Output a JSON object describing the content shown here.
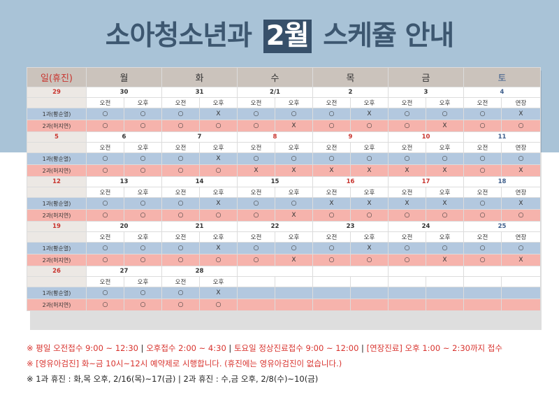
{
  "title": {
    "before": "소아청소년과 ",
    "highlight": "2월",
    "after": " 스케쥴 안내"
  },
  "colors": {
    "top_band": "#a9c3d7",
    "title_text": "#3d5770",
    "doctor1_row": "#b3c8df",
    "doctor2_row": "#f6b3ac",
    "sunday_red": "#c8342e",
    "saturday_blue": "#3f5f8c"
  },
  "header": [
    "일(휴진)",
    "월",
    "화",
    "수",
    "목",
    "금",
    "토"
  ],
  "sessions": [
    "오전",
    "오후"
  ],
  "saturday_sessions": [
    "오전",
    "연장"
  ],
  "doctor1": "1과(황순열)",
  "doctor2": "2과(허지연)",
  "weeks": [
    {
      "sunday": "29",
      "days": [
        {
          "date": "30",
          "hol": false,
          "d1": [
            "○",
            "○"
          ],
          "d2": [
            "○",
            "○"
          ]
        },
        {
          "date": "31",
          "hol": false,
          "d1": [
            "○",
            "X"
          ],
          "d2": [
            "○",
            "○"
          ]
        },
        {
          "date": "2/1",
          "hol": false,
          "d1": [
            "○",
            "○"
          ],
          "d2": [
            "○",
            "X"
          ]
        },
        {
          "date": "2",
          "hol": false,
          "d1": [
            "○",
            "X"
          ],
          "d2": [
            "○",
            "○"
          ]
        },
        {
          "date": "3",
          "hol": false,
          "d1": [
            "○",
            "○"
          ],
          "d2": [
            "○",
            "X"
          ]
        },
        {
          "date": "4",
          "hol": false,
          "d1": [
            "○",
            "X"
          ],
          "d2": [
            "○",
            "○"
          ]
        }
      ]
    },
    {
      "sunday": "5",
      "days": [
        {
          "date": "6",
          "hol": false,
          "d1": [
            "○",
            "○"
          ],
          "d2": [
            "○",
            "○"
          ]
        },
        {
          "date": "7",
          "hol": false,
          "d1": [
            "○",
            "X"
          ],
          "d2": [
            "○",
            "○"
          ]
        },
        {
          "date": "8",
          "hol": true,
          "d1": [
            "○",
            "○"
          ],
          "d2": [
            "X",
            "X"
          ]
        },
        {
          "date": "9",
          "hol": true,
          "d1": [
            "○",
            "○"
          ],
          "d2": [
            "X",
            "X"
          ]
        },
        {
          "date": "10",
          "hol": true,
          "d1": [
            "○",
            "○"
          ],
          "d2": [
            "X",
            "X"
          ]
        },
        {
          "date": "11",
          "hol": false,
          "d1": [
            "○",
            "○"
          ],
          "d2": [
            "○",
            "X"
          ]
        }
      ]
    },
    {
      "sunday": "12",
      "days": [
        {
          "date": "13",
          "hol": false,
          "d1": [
            "○",
            "○"
          ],
          "d2": [
            "○",
            "○"
          ]
        },
        {
          "date": "14",
          "hol": false,
          "d1": [
            "○",
            "X"
          ],
          "d2": [
            "○",
            "○"
          ]
        },
        {
          "date": "15",
          "hol": false,
          "d1": [
            "○",
            "○"
          ],
          "d2": [
            "○",
            "X"
          ]
        },
        {
          "date": "16",
          "hol": true,
          "d1": [
            "X",
            "X"
          ],
          "d2": [
            "○",
            "○"
          ]
        },
        {
          "date": "17",
          "hol": true,
          "d1": [
            "X",
            "X"
          ],
          "d2": [
            "○",
            "○"
          ]
        },
        {
          "date": "18",
          "hol": false,
          "d1": [
            "○",
            "X"
          ],
          "d2": [
            "○",
            "○"
          ]
        }
      ]
    },
    {
      "sunday": "19",
      "days": [
        {
          "date": "20",
          "hol": false,
          "d1": [
            "○",
            "○"
          ],
          "d2": [
            "○",
            "○"
          ]
        },
        {
          "date": "21",
          "hol": false,
          "d1": [
            "○",
            "X"
          ],
          "d2": [
            "○",
            "○"
          ]
        },
        {
          "date": "22",
          "hol": false,
          "d1": [
            "○",
            "○"
          ],
          "d2": [
            "○",
            "X"
          ]
        },
        {
          "date": "23",
          "hol": false,
          "d1": [
            "○",
            "X"
          ],
          "d2": [
            "○",
            "○"
          ]
        },
        {
          "date": "24",
          "hol": false,
          "d1": [
            "○",
            "○"
          ],
          "d2": [
            "○",
            "X"
          ]
        },
        {
          "date": "25",
          "hol": false,
          "d1": [
            "○",
            "○"
          ],
          "d2": [
            "○",
            "X"
          ]
        }
      ]
    },
    {
      "sunday": "26",
      "days": [
        {
          "date": "27",
          "hol": false,
          "d1": [
            "○",
            "○"
          ],
          "d2": [
            "○",
            "○"
          ]
        },
        {
          "date": "28",
          "hol": false,
          "d1": [
            "○",
            "X"
          ],
          "d2": [
            "○",
            "○"
          ]
        }
      ]
    }
  ],
  "notes": {
    "line1": [
      {
        "text": "※ 평일 오전접수 9:00 ~ 12:30",
        "red": true
      },
      {
        "text": " | ",
        "red": false
      },
      {
        "text": "오후접수 2:00 ~ 4:30",
        "red": true
      },
      {
        "text": " | ",
        "red": false
      },
      {
        "text": "토요일 정상진료접수 9:00 ~ 12:00",
        "red": true
      },
      {
        "text": " | ",
        "red": false
      },
      {
        "text": "[연장진료] 오후 1:00 ~ 2:30까지 접수",
        "red": true
      }
    ],
    "line2": [
      {
        "text": "※ [영유아검진] 화~금 10시~12시 예약제로 시행합니다. (휴진에는 영유아검진이 없습니다.)",
        "red": true
      }
    ],
    "line3": [
      {
        "text": "※ 1과 휴진 : 화,목 오후, 2/16(목)~17(금)",
        "red": false
      },
      {
        "text": " | ",
        "red": false
      },
      {
        "text": "2과 휴진 : 수,금 오후, 2/8(수)~10(금)",
        "red": false
      }
    ]
  }
}
